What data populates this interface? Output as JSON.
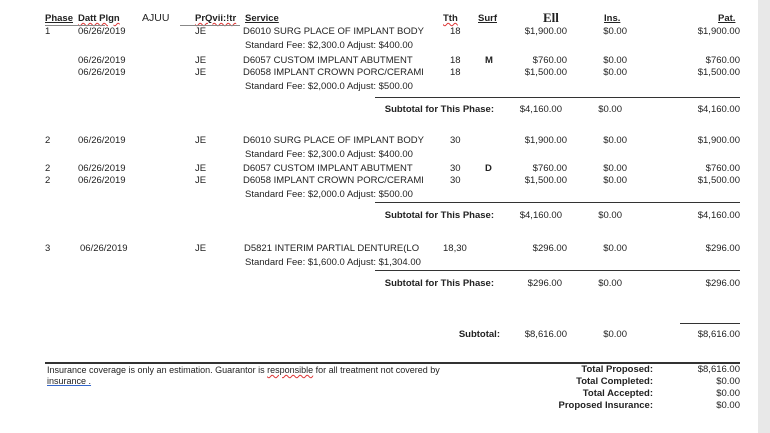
{
  "headers": {
    "phase": "Phase",
    "date": "Datt Plgn",
    "ajuu": "AJUU",
    "provider": "PrQvii:!tr",
    "service": "Service",
    "tooth": "Tth",
    "surf": "Surf",
    "ell": "Ell",
    "ins": "Ins.",
    "pat": "Pat."
  },
  "phases": [
    {
      "rows": [
        {
          "phase": "1",
          "date": "06/26/2019",
          "prov": "JE",
          "service": "D6010 SURG PLACE OF IMPLANT BODY",
          "tooth": "18",
          "surf": "",
          "fee": "$1,900.00",
          "ins": "$0.00",
          "pat": "$1,900.00"
        },
        {
          "note": "Standard Fee: $2,300.0 Adjust: $400.00"
        },
        {
          "phase": "",
          "date": "06/26/2019",
          "prov": "JE",
          "service": "D6057 CUSTOM IMPLANT ABUTMENT",
          "tooth": "18",
          "surf": "M",
          "fee": "$760.00",
          "ins": "$0.00",
          "pat": "$760.00"
        },
        {
          "phase": "",
          "date": "06/26/2019",
          "prov": "JE",
          "service": "D6058 IMPLANT CROWN PORC/CERAMI",
          "tooth": "18",
          "surf": "",
          "fee": "$1,500.00",
          "ins": "$0.00",
          "pat": "$1,500.00"
        },
        {
          "note": "Standard Fee: $2,000.0 Adjust: $500.00"
        }
      ],
      "subtotal": {
        "label": "Subtotal for This Phase:",
        "fee": "$4,160.00",
        "ins": "$0.00",
        "pat": "$4,160.00"
      }
    },
    {
      "rows": [
        {
          "phase": "2",
          "date": "06/26/2019",
          "prov": "JE",
          "service": "D6010 SURG PLACE OF IMPLANT BODY",
          "tooth": "30",
          "surf": "",
          "fee": "$1,900.00",
          "ins": "$0.00",
          "pat": "$1,900.00"
        },
        {
          "note": "Standard Fee: $2,300.0 Adjust: $400.00"
        },
        {
          "phase": "2",
          "date": "06/26/2019",
          "prov": "JE",
          "service": "D6057 CUSTOM IMPLANT ABUTMENT",
          "tooth": "30",
          "surf": "D",
          "fee": "$760.00",
          "ins": "$0.00",
          "pat": "$760.00"
        },
        {
          "phase": "2",
          "date": "06/26/2019",
          "prov": "JE",
          "service": "D6058 IMPLANT CROWN PORC/CERAMI",
          "tooth": "30",
          "surf": "",
          "fee": "$1,500.00",
          "ins": "$0.00",
          "pat": "$1,500.00"
        },
        {
          "note": "Standard Fee: $2,000.0 Adjust: $500.00"
        }
      ],
      "subtotal": {
        "label": "Subtotal for This Phase:",
        "fee": "$4,160.00",
        "ins": "$0.00",
        "pat": "$4,160.00"
      }
    },
    {
      "rows": [
        {
          "phase": "3",
          "date": "06/26/2019",
          "prov": "JE",
          "service": "D5821  INTERIM PARTIAL DENTURE(LO",
          "tooth": "18,30",
          "surf": "",
          "fee": "$296.00",
          "ins": "$0.00",
          "pat": "$296.00"
        },
        {
          "note": "Standard Fee: $1,600.0 Adjust: $1,304.00"
        }
      ],
      "subtotal": {
        "label": "Subtotal for This Phase:",
        "fee": "$296.00",
        "ins": "$0.00",
        "pat": "$296.00"
      }
    }
  ],
  "grand": {
    "label": "Subtotal:",
    "fee": "$8,616.00",
    "ins": "$0.00",
    "pat": "$8,616.00"
  },
  "footer": {
    "disclaimer_a": "Insurance coverage is only an estimation. Guarantor is ",
    "disclaimer_word": "responsible",
    "disclaimer_b": " for all treatment not covered by",
    "disclaimer_link": "insurance .",
    "totals": [
      {
        "label": "Total Proposed:",
        "value": "$8,616.00"
      },
      {
        "label": "Total Completed:",
        "value": "$0.00"
      },
      {
        "label": "Total Accepted:",
        "value": "$0.00"
      },
      {
        "label": "Proposed Insurance:",
        "value": "$0.00"
      }
    ]
  }
}
